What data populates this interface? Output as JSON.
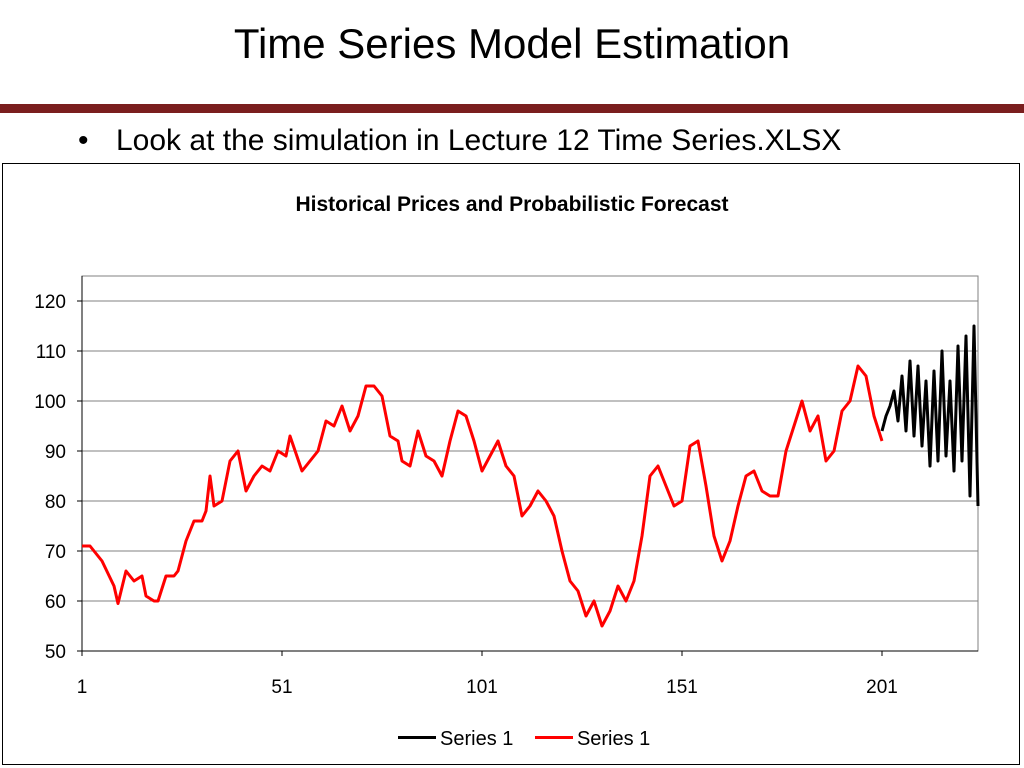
{
  "slide": {
    "title": "Time Series Model Estimation",
    "bullet": "Look at the simulation in Lecture 12 Time Series.XLSX"
  },
  "colors": {
    "accent_rule": "#7a1e1e",
    "historical": "#ff0000",
    "forecast": "#000000",
    "plot_bg": "#ffffff",
    "gridline": "#808080"
  },
  "chart_data": {
    "type": "line",
    "title": "Historical Prices and Probabilistic Forecast",
    "xlabel": "",
    "ylabel": "",
    "xlim": [
      1,
      225
    ],
    "ylim": [
      50,
      125
    ],
    "yticks": [
      50,
      60,
      70,
      80,
      90,
      100,
      110,
      120
    ],
    "xticks": [
      1,
      51,
      101,
      151,
      201
    ],
    "grid": "horizontal",
    "legend_position": "bottom",
    "series": [
      {
        "name": "Series 1",
        "role": "forecast",
        "color": "#000000",
        "x": [
          201,
          202,
          203,
          204,
          205,
          206,
          207,
          208,
          209,
          210,
          211,
          212,
          213,
          214,
          215,
          216,
          217,
          218,
          219,
          220,
          221,
          222,
          223,
          224,
          225
        ],
        "y": [
          94,
          97,
          99,
          102,
          96,
          105,
          94,
          108,
          93,
          107,
          91,
          104,
          87,
          106,
          88,
          110,
          89,
          104,
          86,
          111,
          88,
          113,
          81,
          115,
          79
        ]
      },
      {
        "name": "Series 1",
        "role": "historical",
        "color": "#ff0000",
        "x": [
          1,
          3,
          6,
          9,
          10,
          12,
          14,
          16,
          17,
          19,
          20,
          22,
          24,
          25,
          27,
          29,
          31,
          32,
          33,
          34,
          36,
          38,
          40,
          42,
          44,
          46,
          48,
          50,
          52,
          53,
          56,
          58,
          60,
          62,
          64,
          66,
          68,
          70,
          72,
          74,
          76,
          78,
          80,
          81,
          83,
          85,
          87,
          89,
          91,
          93,
          95,
          97,
          99,
          101,
          103,
          105,
          107,
          109,
          111,
          113,
          115,
          117,
          119,
          121,
          123,
          125,
          127,
          129,
          131,
          133,
          135,
          137,
          139,
          141,
          143,
          145,
          147,
          149,
          151,
          153,
          155,
          157,
          159,
          161,
          163,
          165,
          167,
          169,
          171,
          173,
          175,
          177,
          179,
          181,
          183,
          185,
          187,
          189,
          191,
          193,
          195,
          197,
          199,
          201
        ],
        "y": [
          71,
          71,
          68,
          63,
          59.5,
          66,
          64,
          65,
          61,
          60,
          60,
          65,
          65,
          66,
          72,
          76,
          76,
          78,
          85,
          79,
          80,
          88,
          90,
          82,
          85,
          87,
          86,
          90,
          89,
          93,
          86,
          88,
          90,
          96,
          95,
          99,
          94,
          97,
          103,
          103,
          101,
          93,
          92,
          88,
          87,
          94,
          89,
          88,
          85,
          92,
          98,
          97,
          92,
          86,
          89,
          92,
          87,
          85,
          77,
          79,
          82,
          80,
          77,
          70,
          64,
          62,
          57,
          60,
          55,
          58,
          63,
          60,
          64,
          73,
          85,
          87,
          83,
          79,
          80,
          91,
          92,
          83,
          73,
          68,
          72,
          79,
          85,
          86,
          82,
          81,
          81,
          90,
          95,
          100,
          94,
          97,
          88,
          90,
          98,
          100,
          107,
          105,
          97,
          92
        ]
      }
    ]
  },
  "legend": {
    "items": [
      {
        "label": "Series 1",
        "color": "#000000"
      },
      {
        "label": "Series 1",
        "color": "#ff0000"
      }
    ]
  }
}
